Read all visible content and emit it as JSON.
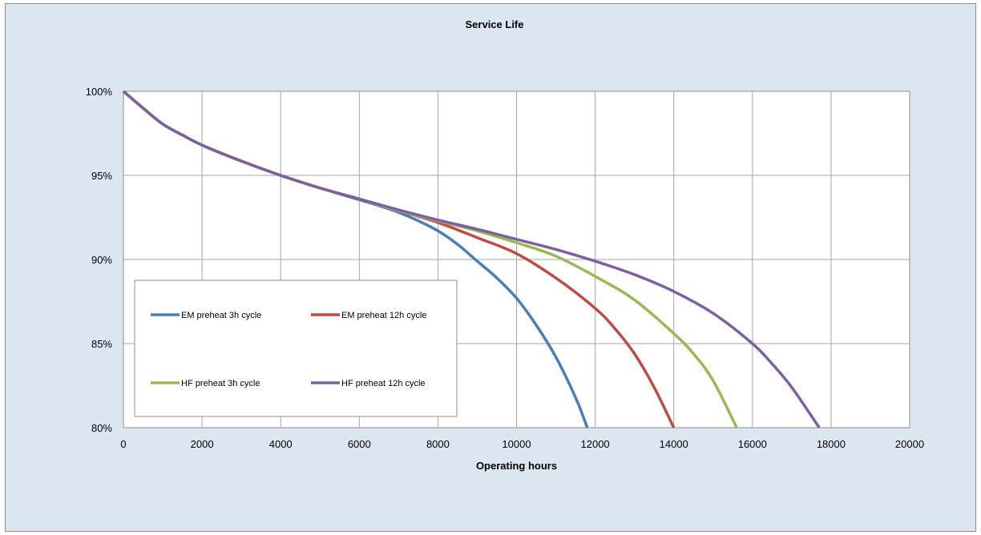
{
  "chart_data": {
    "type": "line",
    "title": "Service Life",
    "xlabel": "Operating hours",
    "ylabel": "",
    "xlim": [
      0,
      20000
    ],
    "ylim": [
      80,
      100
    ],
    "x_ticks": [
      0,
      2000,
      4000,
      6000,
      8000,
      10000,
      12000,
      14000,
      16000,
      18000,
      20000
    ],
    "y_ticks": [
      80,
      85,
      90,
      95,
      100
    ],
    "x_tick_labels": [
      "0",
      "2000",
      "4000",
      "6000",
      "8000",
      "10000",
      "12000",
      "14000",
      "16000",
      "18000",
      "20000"
    ],
    "y_tick_labels": [
      "80%",
      "85%",
      "90%",
      "95%",
      "100%"
    ],
    "grid": true,
    "legend_position": "bottom-left",
    "plot_background": "#ffffff",
    "chart_background": "#dce6f1",
    "gridline_color": "#a6a6a6",
    "series": [
      {
        "name": "EM preheat 3h cycle",
        "color": "#4a7ebb",
        "points": [
          [
            0,
            100
          ],
          [
            500,
            99.0
          ],
          [
            1000,
            98.05
          ],
          [
            1500,
            97.4
          ],
          [
            2000,
            96.8
          ],
          [
            3000,
            95.85
          ],
          [
            4000,
            95.0
          ],
          [
            5000,
            94.25
          ],
          [
            6000,
            93.55
          ],
          [
            6500,
            93.2
          ],
          [
            7000,
            92.8
          ],
          [
            7500,
            92.3
          ],
          [
            8000,
            91.7
          ],
          [
            8500,
            90.9
          ],
          [
            9000,
            89.9
          ],
          [
            9500,
            88.9
          ],
          [
            10000,
            87.7
          ],
          [
            10500,
            86.1
          ],
          [
            11000,
            84.2
          ],
          [
            11500,
            81.8
          ],
          [
            11800,
            80.0
          ]
        ]
      },
      {
        "name": "EM preheat 12h cycle",
        "color": "#be4b48",
        "points": [
          [
            0,
            100
          ],
          [
            500,
            99.0
          ],
          [
            1000,
            98.05
          ],
          [
            1500,
            97.4
          ],
          [
            2000,
            96.8
          ],
          [
            3000,
            95.85
          ],
          [
            4000,
            95.0
          ],
          [
            5000,
            94.25
          ],
          [
            6000,
            93.6
          ],
          [
            7000,
            92.9
          ],
          [
            8000,
            92.2
          ],
          [
            9000,
            91.3
          ],
          [
            10000,
            90.35
          ],
          [
            11000,
            88.9
          ],
          [
            12000,
            87.1
          ],
          [
            12500,
            85.9
          ],
          [
            13000,
            84.4
          ],
          [
            13500,
            82.4
          ],
          [
            14000,
            80.0
          ]
        ]
      },
      {
        "name": "HF preheat 3h cycle",
        "color": "#98b954",
        "points": [
          [
            0,
            100
          ],
          [
            500,
            99.0
          ],
          [
            1000,
            98.05
          ],
          [
            1500,
            97.4
          ],
          [
            2000,
            96.8
          ],
          [
            3000,
            95.85
          ],
          [
            4000,
            95.0
          ],
          [
            5000,
            94.25
          ],
          [
            6000,
            93.6
          ],
          [
            7000,
            92.9
          ],
          [
            8000,
            92.3
          ],
          [
            9000,
            91.7
          ],
          [
            10000,
            91.0
          ],
          [
            11000,
            90.2
          ],
          [
            12000,
            89.0
          ],
          [
            13000,
            87.6
          ],
          [
            14000,
            85.6
          ],
          [
            14500,
            84.4
          ],
          [
            15000,
            82.8
          ],
          [
            15600,
            80.0
          ]
        ]
      },
      {
        "name": "HF preheat 12h cycle",
        "color": "#7d60a0",
        "points": [
          [
            0,
            100
          ],
          [
            500,
            99.0
          ],
          [
            1000,
            98.05
          ],
          [
            1500,
            97.4
          ],
          [
            2000,
            96.8
          ],
          [
            3000,
            95.85
          ],
          [
            4000,
            95.0
          ],
          [
            5000,
            94.25
          ],
          [
            6000,
            93.6
          ],
          [
            7000,
            92.95
          ],
          [
            8000,
            92.35
          ],
          [
            9000,
            91.8
          ],
          [
            10000,
            91.2
          ],
          [
            11000,
            90.6
          ],
          [
            12000,
            89.9
          ],
          [
            13000,
            89.1
          ],
          [
            14000,
            88.1
          ],
          [
            15000,
            86.8
          ],
          [
            16000,
            85.0
          ],
          [
            16500,
            83.8
          ],
          [
            17000,
            82.4
          ],
          [
            17700,
            80.0
          ]
        ]
      }
    ]
  }
}
